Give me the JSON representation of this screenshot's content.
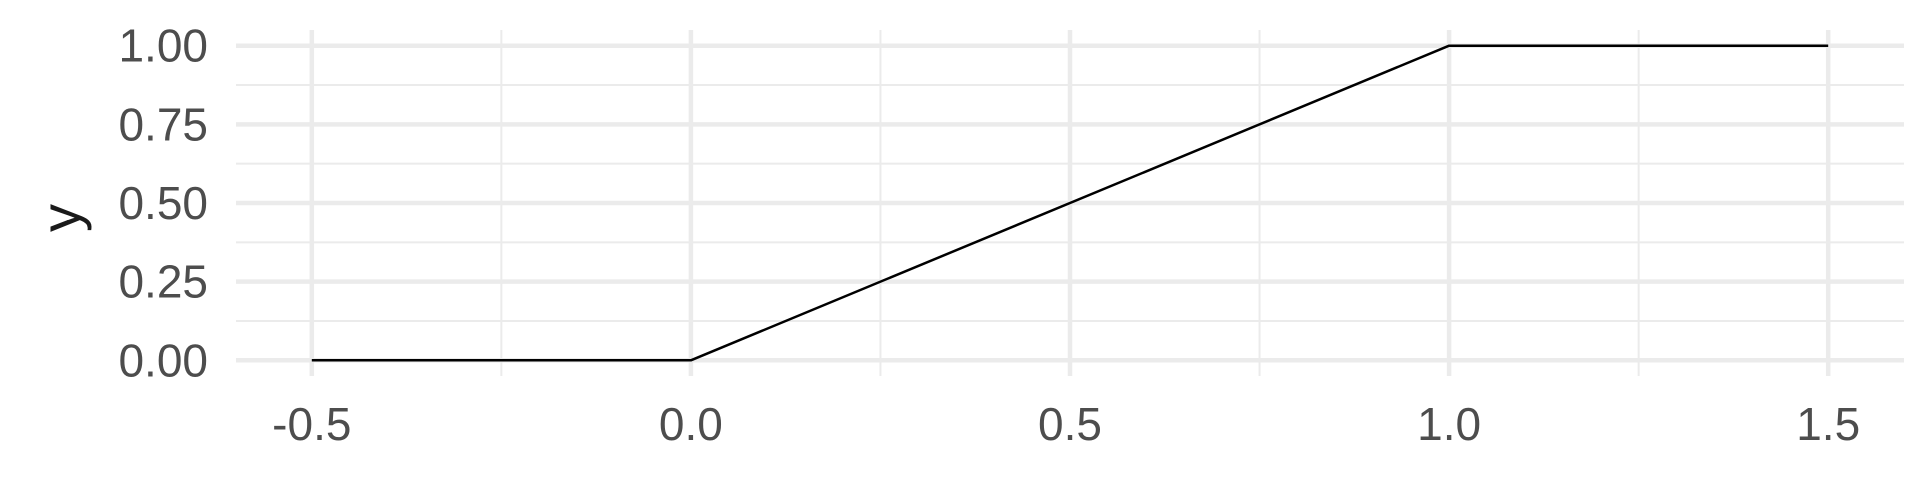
{
  "chart_data": {
    "type": "line",
    "title": "",
    "xlabel": "",
    "ylabel": "y",
    "xlim": [
      -0.6,
      1.6
    ],
    "ylim": [
      -0.05,
      1.05
    ],
    "x_ticks": [
      -0.5,
      0.0,
      0.5,
      1.0,
      1.5
    ],
    "x_tick_labels": [
      "-0.5",
      "0.0",
      "0.5",
      "1.0",
      "1.5"
    ],
    "x_minor_ticks": [
      -0.25,
      0.25,
      0.75,
      1.25
    ],
    "y_ticks": [
      0.0,
      0.25,
      0.5,
      0.75,
      1.0
    ],
    "y_tick_labels": [
      "0.00",
      "0.25",
      "0.50",
      "0.75",
      "1.00"
    ],
    "y_minor_ticks": [
      0.125,
      0.375,
      0.625,
      0.875
    ],
    "grid": true,
    "legend": "none",
    "series": [
      {
        "x": [
          -0.5,
          0.0,
          1.0,
          1.5
        ],
        "y": [
          0.0,
          0.0,
          1.0,
          1.0
        ],
        "color": "#000000"
      }
    ],
    "colors": {
      "grid": "#ebebeb",
      "text": "#4d4d4d",
      "line": "#000000"
    }
  }
}
